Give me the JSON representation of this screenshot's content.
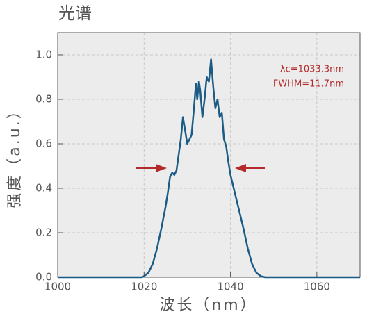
{
  "chart_data": {
    "type": "line",
    "title": "光谱",
    "x_label": "波长（nm）",
    "y_label": "强度（a.u.）",
    "annotations": [
      "λc=1033.3nm",
      "FWHM=11.7nm"
    ],
    "x": [
      1000,
      1019.5,
      1020,
      1021,
      1022,
      1023,
      1024,
      1025,
      1025.5,
      1026,
      1026.5,
      1027,
      1027.5,
      1028,
      1028.5,
      1029,
      1029.5,
      1030,
      1030.5,
      1031,
      1031.5,
      1032,
      1032.3,
      1032.7,
      1033,
      1033.5,
      1034,
      1034.5,
      1035,
      1035.5,
      1036,
      1036.5,
      1037,
      1037.5,
      1038,
      1038.5,
      1039,
      1039.5,
      1040,
      1041,
      1042,
      1043,
      1044,
      1045,
      1046,
      1047,
      1048,
      1070
    ],
    "series": [
      {
        "color": "#1b5b86",
        "values": [
          0,
          0,
          0.005,
          0.02,
          0.06,
          0.13,
          0.22,
          0.32,
          0.38,
          0.45,
          0.47,
          0.46,
          0.48,
          0.55,
          0.62,
          0.72,
          0.66,
          0.6,
          0.62,
          0.64,
          0.75,
          0.87,
          0.8,
          0.88,
          0.84,
          0.72,
          0.8,
          0.9,
          0.88,
          0.98,
          0.86,
          0.76,
          0.8,
          0.72,
          0.74,
          0.62,
          0.59,
          0.52,
          0.46,
          0.38,
          0.3,
          0.22,
          0.13,
          0.06,
          0.02,
          0.005,
          0,
          0
        ]
      }
    ],
    "xlim": [
      1000,
      1070
    ],
    "ylim": [
      0,
      1.1
    ],
    "xticks": [
      1000,
      1020,
      1040,
      1060
    ],
    "yticks": [
      {
        "value": 0,
        "label": "0.0"
      },
      0.2,
      0.4,
      0.6,
      0.8,
      {
        "value": 1,
        "label": "1.0"
      }
    ],
    "grid": true
  }
}
